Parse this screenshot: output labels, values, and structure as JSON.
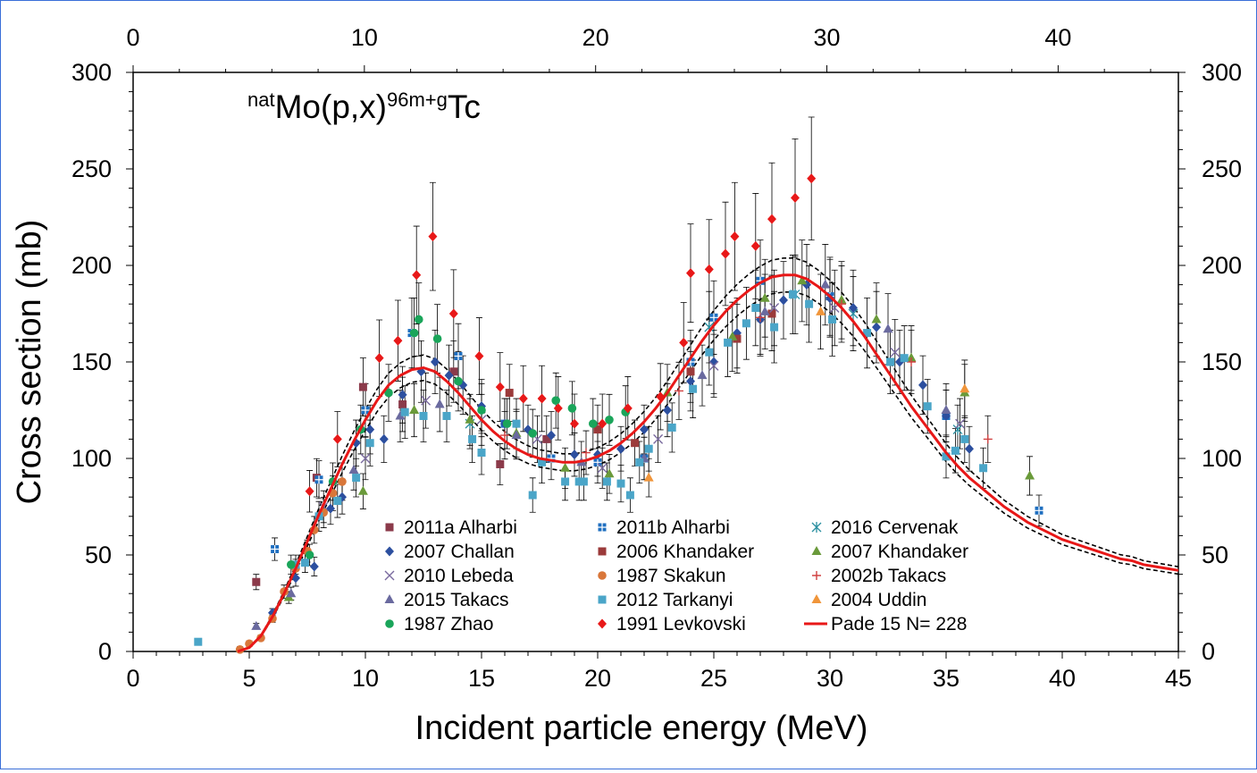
{
  "chart_data": {
    "type": "scatter",
    "title": "natMo(p,x)96m+gTc",
    "title_parts": {
      "pre_sup": "nat",
      "main1": "Mo(p,x)",
      "sup": "96m+g",
      "main2": "Tc"
    },
    "xlabel": "Incident particle energy (MeV)",
    "ylabel": "Cross section (mb)",
    "xlim": [
      0,
      45
    ],
    "ylim": [
      0,
      300
    ],
    "x_ticks": [
      0,
      5,
      10,
      15,
      20,
      25,
      30,
      35,
      40,
      45
    ],
    "x_ticks_top": [
      0,
      10,
      20,
      30,
      40
    ],
    "y_ticks": [
      0,
      50,
      100,
      150,
      200,
      250,
      300
    ],
    "fit_band_upper_factor": 1.045,
    "fit_band_lower_factor": 0.955,
    "series": [
      {
        "name": "2011a Alharbi",
        "marker": "square",
        "color": "#8b3a4a",
        "points": [
          [
            5.3,
            36
          ],
          [
            7.9,
            90
          ],
          [
            9.9,
            137
          ],
          [
            11.6,
            128
          ],
          [
            13.8,
            145
          ],
          [
            15.8,
            97
          ],
          [
            17.8,
            110
          ]
        ]
      },
      {
        "name": "2011b Alharbi",
        "marker": "square-cross",
        "color": "#1f6fc0",
        "points": [
          [
            6.1,
            53
          ],
          [
            8.0,
            89
          ],
          [
            10.0,
            125
          ],
          [
            12.0,
            165
          ],
          [
            14.0,
            153
          ],
          [
            16.0,
            118
          ],
          [
            18.0,
            100
          ],
          [
            20.0,
            98
          ],
          [
            22.0,
            100
          ],
          [
            24.0,
            150
          ],
          [
            25.0,
            173
          ],
          [
            27.0,
            192
          ],
          [
            30.0,
            184
          ],
          [
            35.0,
            122
          ],
          [
            39.0,
            73
          ]
        ]
      },
      {
        "name": "2016 Cervenak",
        "marker": "asterisk",
        "color": "#2a8fa0",
        "points": [
          [
            14.5,
            118
          ],
          [
            24.8,
            168
          ],
          [
            28.5,
            185
          ],
          [
            31.0,
            175
          ],
          [
            35.5,
            115
          ]
        ]
      },
      {
        "name": "2007 Challan",
        "marker": "diamond",
        "color": "#2c4f9f",
        "points": [
          [
            6.0,
            20
          ],
          [
            7.0,
            38
          ],
          [
            7.8,
            44
          ],
          [
            8.5,
            74
          ],
          [
            9.0,
            80
          ],
          [
            9.6,
            108
          ],
          [
            10.2,
            115
          ],
          [
            10.8,
            110
          ],
          [
            11.6,
            133
          ],
          [
            12.4,
            145
          ],
          [
            13.0,
            150
          ],
          [
            13.6,
            143
          ],
          [
            14.2,
            138
          ],
          [
            15.0,
            127
          ],
          [
            16.0,
            118
          ],
          [
            17.0,
            115
          ],
          [
            18.0,
            112
          ],
          [
            19.0,
            102
          ],
          [
            20.0,
            102
          ],
          [
            21.0,
            105
          ],
          [
            22.0,
            115
          ],
          [
            23.0,
            125
          ],
          [
            24.0,
            140
          ],
          [
            25.0,
            150
          ],
          [
            26.0,
            165
          ],
          [
            27.0,
            172
          ],
          [
            28.0,
            182
          ],
          [
            29.0,
            190
          ],
          [
            30.0,
            183
          ],
          [
            31.0,
            178
          ],
          [
            32.0,
            168
          ],
          [
            33.0,
            150
          ],
          [
            34.0,
            138
          ],
          [
            35.0,
            122
          ],
          [
            36.0,
            105
          ]
        ]
      },
      {
        "name": "2006 Khandaker",
        "marker": "square",
        "color": "#9b3a3a",
        "points": [
          [
            16.2,
            134
          ],
          [
            20.0,
            115
          ],
          [
            21.6,
            108
          ],
          [
            24.0,
            145
          ],
          [
            26.0,
            162
          ],
          [
            27.5,
            175
          ]
        ]
      },
      {
        "name": "2007 Khandaker",
        "marker": "triangle",
        "color": "#6a9a3a",
        "points": [
          [
            6.7,
            28
          ],
          [
            9.9,
            83
          ],
          [
            12.1,
            125
          ],
          [
            14.5,
            120
          ],
          [
            16.5,
            113
          ],
          [
            18.6,
            95
          ],
          [
            20.5,
            92
          ],
          [
            23.0,
            134
          ],
          [
            25.8,
            163
          ],
          [
            27.2,
            183
          ],
          [
            28.8,
            192
          ],
          [
            30.5,
            182
          ],
          [
            32.0,
            172
          ],
          [
            33.5,
            152
          ],
          [
            35.8,
            134
          ],
          [
            38.6,
            91
          ]
        ]
      },
      {
        "name": "2010 Lebeda",
        "marker": "x",
        "color": "#7a6a9f",
        "points": [
          [
            8.2,
            75
          ],
          [
            10.0,
            100
          ],
          [
            12.6,
            130
          ],
          [
            15.0,
            120
          ],
          [
            17.4,
            110
          ],
          [
            20.2,
            95
          ],
          [
            22.6,
            110
          ],
          [
            25.0,
            148
          ],
          [
            27.6,
            178
          ],
          [
            30.2,
            178
          ],
          [
            32.8,
            155
          ],
          [
            35.6,
            118
          ]
        ]
      },
      {
        "name": "1987 Skakun",
        "marker": "circle",
        "color": "#d9773a",
        "points": [
          [
            4.6,
            1
          ],
          [
            5.0,
            4
          ],
          [
            5.5,
            7
          ],
          [
            6.0,
            17
          ],
          [
            6.5,
            31
          ],
          [
            7.0,
            43
          ],
          [
            7.5,
            52
          ],
          [
            7.8,
            63
          ],
          [
            8.2,
            72
          ],
          [
            8.6,
            82
          ],
          [
            9.0,
            88
          ]
        ]
      },
      {
        "name": "2002b Takacs",
        "marker": "plus",
        "color": "#d04040",
        "points": [
          [
            16.0,
            112
          ],
          [
            19.5,
            103
          ],
          [
            23.5,
            135
          ],
          [
            27.0,
            173
          ],
          [
            30.5,
            180
          ],
          [
            33.5,
            150
          ],
          [
            36.8,
            110
          ]
        ]
      },
      {
        "name": "2015 Takacs",
        "marker": "triangle",
        "color": "#6a6a9f",
        "points": [
          [
            5.3,
            13
          ],
          [
            6.8,
            30
          ],
          [
            9.5,
            94
          ],
          [
            11.5,
            122
          ],
          [
            13.2,
            128
          ],
          [
            16.5,
            112
          ],
          [
            19.3,
            98
          ],
          [
            22.0,
            100
          ],
          [
            24.5,
            143
          ],
          [
            27.2,
            176
          ],
          [
            29.8,
            190
          ],
          [
            32.5,
            167
          ],
          [
            35.0,
            125
          ]
        ]
      },
      {
        "name": "2012 Tarkanyi",
        "marker": "square",
        "color": "#4aa5c8",
        "points": [
          [
            2.8,
            5
          ],
          [
            7.0,
            45
          ],
          [
            7.4,
            46
          ],
          [
            8.0,
            70
          ],
          [
            8.8,
            78
          ],
          [
            9.6,
            90
          ],
          [
            10.2,
            108
          ],
          [
            11.7,
            124
          ],
          [
            12.5,
            122
          ],
          [
            13.5,
            122
          ],
          [
            14.6,
            110
          ],
          [
            15.0,
            103
          ],
          [
            16.5,
            118
          ],
          [
            17.2,
            81
          ],
          [
            17.6,
            98
          ],
          [
            18.6,
            88
          ],
          [
            19.2,
            88
          ],
          [
            19.4,
            88
          ],
          [
            20.4,
            88
          ],
          [
            21.0,
            87
          ],
          [
            21.4,
            81
          ],
          [
            21.8,
            98
          ],
          [
            22.2,
            105
          ],
          [
            23.2,
            116
          ],
          [
            24.1,
            136
          ],
          [
            24.8,
            155
          ],
          [
            25.6,
            160
          ],
          [
            26.4,
            170
          ],
          [
            26.8,
            178
          ],
          [
            27.6,
            168
          ],
          [
            28.4,
            185
          ],
          [
            29.1,
            180
          ],
          [
            30.1,
            172
          ],
          [
            31.6,
            165
          ],
          [
            32.6,
            150
          ],
          [
            33.2,
            152
          ],
          [
            34.2,
            127
          ],
          [
            35.0,
            101
          ],
          [
            35.4,
            104
          ],
          [
            35.8,
            110
          ],
          [
            36.6,
            95
          ]
        ]
      },
      {
        "name": "2004 Uddin",
        "marker": "triangle",
        "color": "#f0953a",
        "points": [
          [
            22.2,
            90
          ],
          [
            29.6,
            176
          ],
          [
            35.8,
            136
          ]
        ]
      },
      {
        "name": "1987 Zhao",
        "marker": "circle",
        "color": "#1aa55a",
        "points": [
          [
            6.8,
            45
          ],
          [
            7.6,
            50
          ],
          [
            8.6,
            88
          ],
          [
            9.8,
            115
          ],
          [
            11.0,
            134
          ],
          [
            12.1,
            165
          ],
          [
            12.3,
            172
          ],
          [
            13.1,
            162
          ],
          [
            14.0,
            140
          ],
          [
            15.0,
            125
          ],
          [
            16.1,
            118
          ],
          [
            17.2,
            113
          ],
          [
            18.2,
            130
          ],
          [
            18.9,
            126
          ],
          [
            19.8,
            118
          ],
          [
            20.5,
            120
          ],
          [
            21.2,
            124
          ]
        ]
      },
      {
        "name": "1991 Levkovski",
        "marker": "diamond",
        "color": "#e81818",
        "points": [
          [
            7.6,
            83
          ],
          [
            8.8,
            110
          ],
          [
            10.6,
            152
          ],
          [
            11.4,
            161
          ],
          [
            12.2,
            195
          ],
          [
            12.9,
            215
          ],
          [
            13.8,
            175
          ],
          [
            14.9,
            153
          ],
          [
            15.8,
            137
          ],
          [
            16.8,
            131
          ],
          [
            17.6,
            131
          ],
          [
            18.3,
            126
          ],
          [
            19.0,
            118
          ],
          [
            20.2,
            118
          ],
          [
            21.3,
            126
          ],
          [
            22.7,
            132
          ],
          [
            23.7,
            160
          ],
          [
            24.0,
            196
          ],
          [
            24.8,
            198
          ],
          [
            25.5,
            206
          ],
          [
            25.9,
            215
          ],
          [
            26.8,
            210
          ],
          [
            27.5,
            224
          ],
          [
            28.5,
            235
          ],
          [
            29.2,
            245
          ]
        ]
      }
    ],
    "fit": {
      "name": "Pade 15 N= 228",
      "color": "#e81818",
      "x": [
        4.5,
        5.0,
        5.5,
        6.0,
        6.5,
        7.0,
        7.5,
        8.0,
        8.5,
        9.0,
        9.5,
        10.0,
        10.5,
        11.0,
        11.5,
        12.0,
        12.5,
        13.0,
        13.5,
        14.0,
        14.5,
        15.0,
        15.5,
        16.0,
        16.5,
        17.0,
        17.5,
        18.0,
        18.5,
        19.0,
        19.5,
        20.0,
        20.5,
        21.0,
        21.5,
        22.0,
        22.5,
        23.0,
        23.5,
        24.0,
        24.5,
        25.0,
        25.5,
        26.0,
        26.5,
        27.0,
        27.5,
        28.0,
        28.5,
        29.0,
        29.5,
        30.0,
        30.5,
        31.0,
        31.5,
        32.0,
        32.5,
        33.0,
        33.5,
        34.0,
        34.5,
        35.0,
        35.5,
        36.0,
        36.5,
        37.0,
        37.5,
        38.0,
        38.5,
        39.0,
        39.5,
        40.0,
        40.5,
        41.0,
        41.5,
        42.0,
        42.5,
        43.0,
        43.5,
        44.0,
        44.5,
        45.0
      ],
      "y": [
        0,
        2,
        8,
        18,
        30,
        43,
        57,
        71,
        84,
        97,
        109,
        120,
        130,
        138,
        143,
        146,
        147,
        145,
        140,
        134,
        127,
        120,
        114,
        109,
        105,
        102,
        100,
        99,
        98,
        98,
        99,
        101,
        104,
        108,
        113,
        119,
        126,
        134,
        143,
        152,
        161,
        169,
        176,
        182,
        187,
        191,
        194,
        195,
        195,
        193,
        189,
        184,
        178,
        171,
        163,
        154,
        145,
        136,
        127,
        119,
        111,
        103,
        96,
        90,
        85,
        80,
        75,
        71,
        67,
        64,
        61,
        58,
        56,
        54,
        52,
        50,
        48,
        47,
        45,
        44,
        43,
        42
      ]
    }
  }
}
